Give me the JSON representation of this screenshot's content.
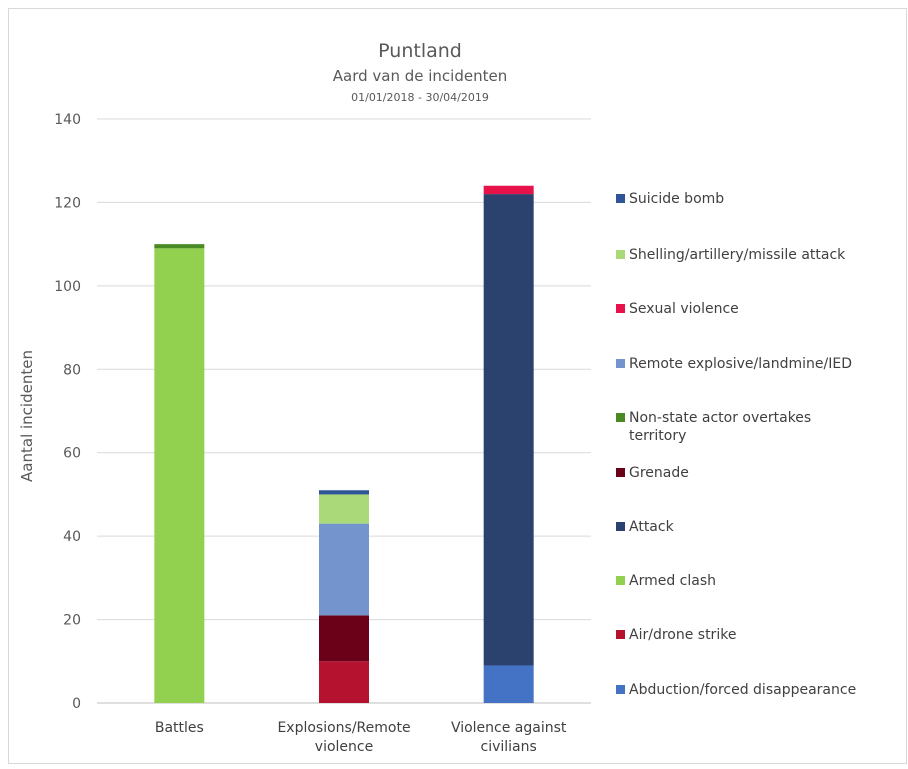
{
  "chart_data": {
    "type": "bar",
    "stacked": true,
    "title": "Puntland",
    "subtitle": "Aard van de incidenten",
    "subtitle2": "01/01/2018 - 30/04/2019",
    "ylabel": "Aantal incidenten",
    "xlabel": "",
    "ylim": [
      0,
      140
    ],
    "yticks": [
      0,
      20,
      40,
      60,
      80,
      100,
      120,
      140
    ],
    "grid": true,
    "legend_position": "right",
    "categories": [
      [
        "Battles"
      ],
      [
        "Explosions/Remote",
        "violence"
      ],
      [
        "Violence against",
        "civilians"
      ]
    ],
    "series": [
      {
        "name": "Abduction/forced disappearance",
        "color": "#4472c4",
        "values": [
          0,
          0,
          9
        ]
      },
      {
        "name": "Air/drone strike",
        "color": "#b5122f",
        "values": [
          0,
          10,
          0
        ]
      },
      {
        "name": "Armed clash",
        "color": "#92d050",
        "values": [
          109,
          0,
          0
        ]
      },
      {
        "name": "Attack",
        "color": "#2c426e",
        "values": [
          0,
          0,
          113
        ]
      },
      {
        "name": "Grenade",
        "color": "#6b0019",
        "values": [
          0,
          11,
          0
        ]
      },
      {
        "name": "Non-state actor overtakes territory",
        "color": "#4a8a25",
        "values": [
          1,
          0,
          0
        ]
      },
      {
        "name": "Remote explosive/landmine/IED",
        "color": "#7394cc",
        "values": [
          0,
          22,
          0
        ]
      },
      {
        "name": "Sexual violence",
        "color": "#e8124b",
        "values": [
          0,
          0,
          2
        ]
      },
      {
        "name": "Shelling/artillery/missile attack",
        "color": "#a9d979",
        "values": [
          0,
          7,
          0
        ]
      },
      {
        "name": "Suicide bomb",
        "color": "#2f5597",
        "values": [
          0,
          1,
          0
        ]
      }
    ],
    "legend_lines": [
      [
        "Suicide bomb"
      ],
      [
        "Shelling/artillery/missile attack"
      ],
      [
        "Sexual violence"
      ],
      [
        "Remote explosive/landmine/IED"
      ],
      [
        "Non-state actor overtakes",
        "territory"
      ],
      [
        "Grenade"
      ],
      [
        "Attack"
      ],
      [
        "Armed clash"
      ],
      [
        "Air/drone strike"
      ],
      [
        "Abduction/forced disappearance"
      ]
    ]
  }
}
